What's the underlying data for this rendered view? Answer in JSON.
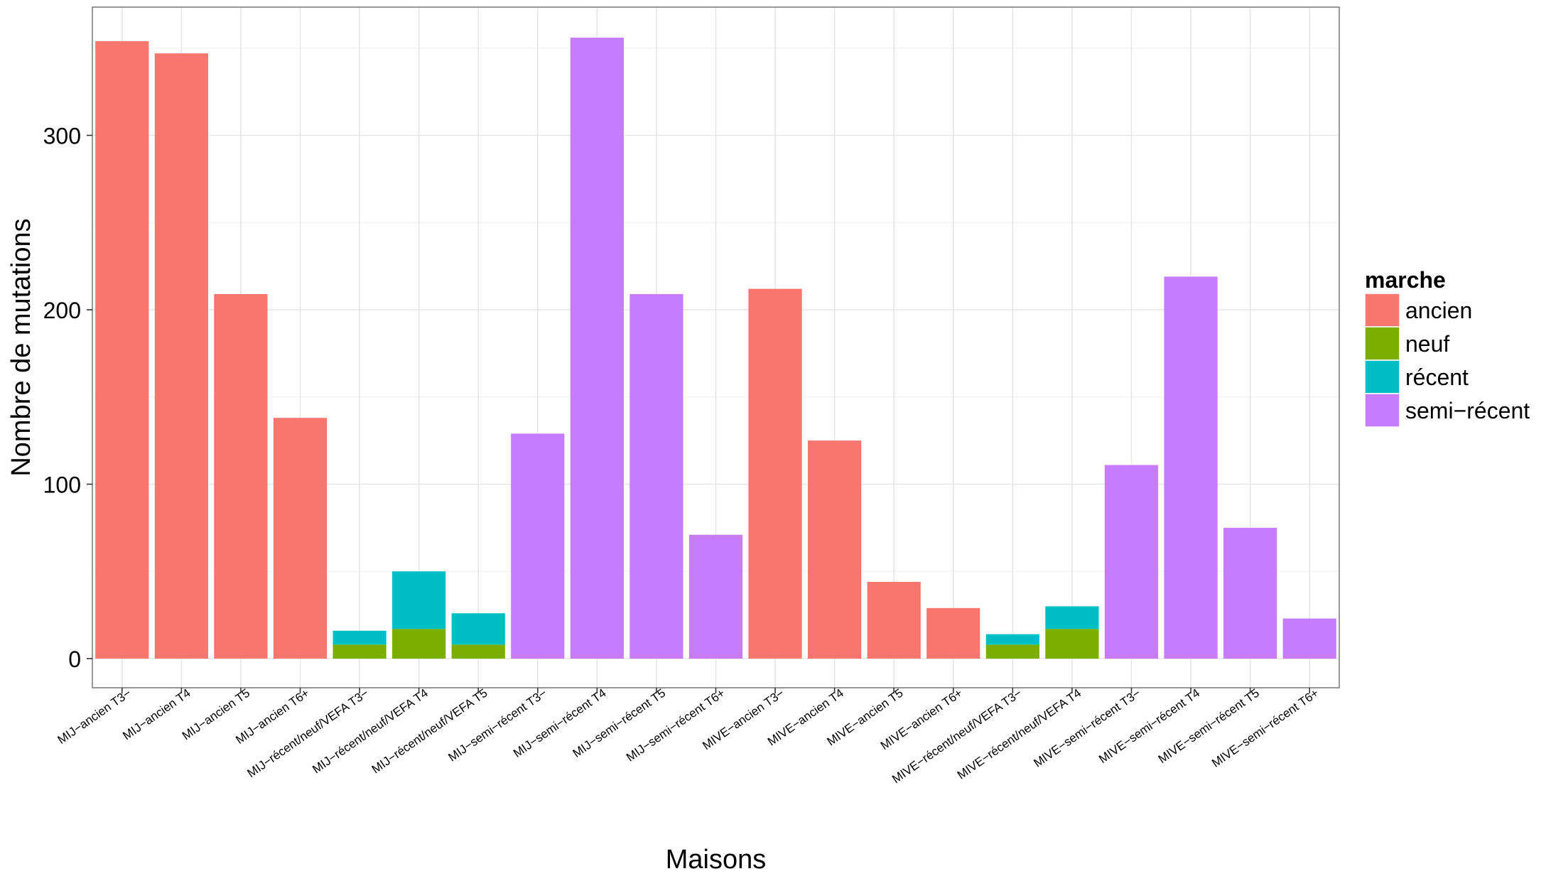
{
  "chart_data": {
    "type": "bar",
    "stacked": true,
    "xlabel": "Maisons",
    "ylabel": "Nombre de mutations",
    "ylim": [
      0,
      360
    ],
    "yticks": [
      0,
      100,
      200,
      300
    ],
    "grid": true,
    "legend": {
      "title": "marche",
      "position": "right",
      "entries": [
        "ancien",
        "neuf",
        "récent",
        "semi−récent"
      ]
    },
    "colors": {
      "ancien": "#F8766D",
      "neuf": "#7CAE00",
      "récent": "#00BFC4",
      "semi−récent": "#C77CFF"
    },
    "categories": [
      "MIJ−ancien T3−",
      "MIJ−ancien T4",
      "MIJ−ancien T5",
      "MIJ−ancien T6+",
      "MIJ−récent/neuf/VEFA T3−",
      "MIJ−récent/neuf/VEFA T4",
      "MIJ−récent/neuf/VEFA T5",
      "MIJ−semi−récent T3−",
      "MIJ−semi−récent T4",
      "MIJ−semi−récent T5",
      "MIJ−semi−récent T6+",
      "MIVE−ancien T3−",
      "MIVE−ancien T4",
      "MIVE−ancien T5",
      "MIVE−ancien T6+",
      "MIVE−récent/neuf/VEFA T3−",
      "MIVE−récent/neuf/VEFA T4",
      "MIVE−semi−récent T3−",
      "MIVE−semi−récent T4",
      "MIVE−semi−récent T5",
      "MIVE−semi−récent T6+"
    ],
    "series": [
      {
        "name": "ancien",
        "values": [
          354,
          347,
          209,
          138,
          0,
          0,
          0,
          0,
          0,
          0,
          0,
          212,
          125,
          44,
          29,
          0,
          0,
          0,
          0,
          0,
          0
        ]
      },
      {
        "name": "neuf",
        "values": [
          0,
          0,
          0,
          0,
          8,
          17,
          8,
          0,
          0,
          0,
          0,
          0,
          0,
          0,
          0,
          8,
          17,
          0,
          0,
          0,
          0
        ]
      },
      {
        "name": "récent",
        "values": [
          0,
          0,
          0,
          0,
          8,
          33,
          18,
          0,
          0,
          0,
          0,
          0,
          0,
          0,
          0,
          6,
          13,
          0,
          0,
          0,
          0
        ]
      },
      {
        "name": "semi−récent",
        "values": [
          0,
          0,
          0,
          0,
          0,
          0,
          0,
          129,
          356,
          209,
          71,
          0,
          0,
          0,
          0,
          0,
          0,
          111,
          219,
          75,
          23
        ]
      }
    ]
  }
}
